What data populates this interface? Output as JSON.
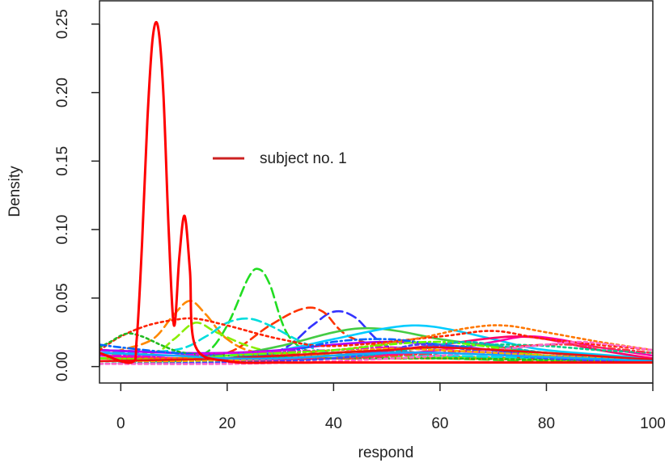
{
  "chart_data": {
    "type": "line",
    "title": "",
    "xlabel": "respond",
    "ylabel": "Density",
    "xlim": [
      -4,
      100
    ],
    "ylim": [
      -0.012,
      0.267
    ],
    "x_ticks": [
      0,
      20,
      40,
      60,
      80,
      100
    ],
    "y_ticks": [
      0.0,
      0.05,
      0.1,
      0.15,
      0.2,
      0.25
    ],
    "x_tick_labels": [
      "0",
      "20",
      "40",
      "60",
      "80",
      "100"
    ],
    "y_tick_labels": [
      "0.00",
      "0.05",
      "0.10",
      "0.15",
      "0.20",
      "0.25"
    ],
    "grid": false,
    "legend": {
      "placement": "upper-middle",
      "entries": [
        {
          "label": "subject no. 1",
          "color": "#cc2222"
        }
      ]
    },
    "highlight_series": {
      "label": "subject no. 1",
      "color": "#ff0000",
      "x": [
        -4,
        2,
        3,
        4,
        5,
        6,
        7,
        8,
        9,
        10,
        11,
        12,
        13,
        14,
        20,
        30,
        40,
        50,
        60,
        70,
        80,
        90,
        100
      ],
      "y": [
        0.01,
        0.003,
        0.02,
        0.09,
        0.18,
        0.24,
        0.248,
        0.2,
        0.1,
        0.03,
        0.08,
        0.11,
        0.07,
        0.015,
        0.004,
        0.003,
        0.003,
        0.003,
        0.003,
        0.003,
        0.003,
        0.003,
        0.003
      ]
    },
    "background_series": [
      {
        "color": "#22dd22",
        "dash": "12 6",
        "x": [
          -4,
          10,
          16,
          20,
          24,
          26,
          28,
          32,
          40,
          60,
          80,
          100
        ],
        "y": [
          0.006,
          0.006,
          0.01,
          0.03,
          0.065,
          0.071,
          0.06,
          0.02,
          0.008,
          0.006,
          0.004,
          0.004
        ]
      },
      {
        "color": "#ff8800",
        "dash": "12 6",
        "x": [
          -4,
          0,
          6,
          10,
          13,
          16,
          20,
          26,
          40,
          60,
          80,
          100
        ],
        "y": [
          0.008,
          0.012,
          0.02,
          0.038,
          0.048,
          0.038,
          0.02,
          0.01,
          0.006,
          0.006,
          0.005,
          0.005
        ]
      },
      {
        "color": "#3333ff",
        "dash": "12 6",
        "x": [
          -4,
          10,
          20,
          30,
          36,
          40,
          44,
          50,
          60,
          80,
          100
        ],
        "y": [
          0.012,
          0.01,
          0.006,
          0.012,
          0.03,
          0.04,
          0.036,
          0.015,
          0.008,
          0.006,
          0.005
        ]
      },
      {
        "color": "#ff3300",
        "dash": "10 6",
        "x": [
          -4,
          10,
          20,
          28,
          34,
          38,
          44,
          60,
          80,
          100
        ],
        "y": [
          0.01,
          0.008,
          0.01,
          0.03,
          0.042,
          0.04,
          0.02,
          0.008,
          0.006,
          0.005
        ]
      },
      {
        "color": "#88ee00",
        "dash": "10 6",
        "x": [
          -4,
          6,
          10,
          14,
          18,
          24,
          30,
          40,
          60,
          80,
          100
        ],
        "y": [
          0.008,
          0.01,
          0.02,
          0.032,
          0.025,
          0.015,
          0.01,
          0.008,
          0.007,
          0.005,
          0.004
        ]
      },
      {
        "color": "#00dddd",
        "dash": "12 6",
        "x": [
          -4,
          10,
          16,
          20,
          24,
          28,
          34,
          40,
          60,
          80,
          100
        ],
        "y": [
          0.01,
          0.012,
          0.022,
          0.032,
          0.035,
          0.03,
          0.018,
          0.01,
          0.008,
          0.006,
          0.005
        ]
      },
      {
        "color": "#44cc44",
        "dash": "",
        "x": [
          -4,
          10,
          20,
          30,
          40,
          46,
          52,
          60,
          70,
          80,
          100
        ],
        "y": [
          0.006,
          0.006,
          0.008,
          0.015,
          0.025,
          0.028,
          0.026,
          0.02,
          0.015,
          0.01,
          0.006
        ]
      },
      {
        "color": "#00ccff",
        "dash": "",
        "x": [
          -4,
          10,
          20,
          30,
          40,
          50,
          56,
          62,
          70,
          80,
          100
        ],
        "y": [
          0.004,
          0.005,
          0.008,
          0.012,
          0.02,
          0.028,
          0.03,
          0.027,
          0.02,
          0.012,
          0.006
        ]
      },
      {
        "color": "#ff00aa",
        "dash": "",
        "x": [
          -4,
          10,
          20,
          40,
          60,
          70,
          76,
          82,
          90,
          100
        ],
        "y": [
          0.008,
          0.006,
          0.005,
          0.006,
          0.012,
          0.018,
          0.022,
          0.02,
          0.014,
          0.008
        ]
      },
      {
        "color": "#ff0066",
        "dash": "",
        "x": [
          -4,
          10,
          20,
          40,
          60,
          68,
          74,
          80,
          90,
          100
        ],
        "y": [
          0.012,
          0.01,
          0.008,
          0.008,
          0.016,
          0.02,
          0.022,
          0.02,
          0.012,
          0.006
        ]
      },
      {
        "color": "#aa00ff",
        "dash": "",
        "x": [
          -4,
          10,
          20,
          30,
          40,
          50,
          60,
          70,
          80,
          100
        ],
        "y": [
          0.012,
          0.01,
          0.01,
          0.012,
          0.016,
          0.018,
          0.016,
          0.012,
          0.008,
          0.004
        ]
      },
      {
        "color": "#ff2200",
        "dash": "3 4",
        "x": [
          -4,
          0,
          5,
          10,
          14,
          20,
          30,
          40,
          60,
          70,
          80,
          100
        ],
        "y": [
          0.012,
          0.022,
          0.03,
          0.034,
          0.035,
          0.03,
          0.02,
          0.015,
          0.022,
          0.026,
          0.02,
          0.012
        ]
      },
      {
        "color": "#ff7700",
        "dash": "3 4",
        "x": [
          -4,
          10,
          20,
          40,
          55,
          65,
          72,
          80,
          90,
          100
        ],
        "y": [
          0.006,
          0.006,
          0.008,
          0.012,
          0.02,
          0.028,
          0.03,
          0.025,
          0.018,
          0.012
        ]
      },
      {
        "color": "#22bb22",
        "dash": "3 4",
        "x": [
          -4,
          -2,
          1,
          4,
          8,
          12,
          20,
          40,
          60,
          80,
          100
        ],
        "y": [
          0.014,
          0.018,
          0.024,
          0.022,
          0.015,
          0.01,
          0.008,
          0.006,
          0.006,
          0.005,
          0.004
        ]
      },
      {
        "color": "#00cc88",
        "dash": "3 4",
        "x": [
          -4,
          10,
          20,
          40,
          60,
          70,
          80,
          90,
          100
        ],
        "y": [
          0.004,
          0.004,
          0.006,
          0.01,
          0.014,
          0.016,
          0.015,
          0.012,
          0.01
        ]
      },
      {
        "color": "#0066ff",
        "dash": "8 4 2 4",
        "x": [
          -4,
          0,
          10,
          20,
          30,
          40,
          50,
          60,
          80,
          100
        ],
        "y": [
          0.016,
          0.014,
          0.01,
          0.008,
          0.01,
          0.018,
          0.02,
          0.016,
          0.008,
          0.004
        ]
      },
      {
        "color": "#dd00dd",
        "dash": "8 4 2 4",
        "x": [
          -4,
          10,
          20,
          40,
          50,
          60,
          70,
          80,
          100
        ],
        "y": [
          0.008,
          0.008,
          0.01,
          0.012,
          0.014,
          0.012,
          0.01,
          0.008,
          0.005
        ]
      },
      {
        "color": "#ff3344",
        "dash": "8 4 2 4",
        "x": [
          -4,
          10,
          20,
          40,
          60,
          80,
          90,
          100
        ],
        "y": [
          0.004,
          0.005,
          0.006,
          0.006,
          0.01,
          0.016,
          0.014,
          0.01
        ]
      },
      {
        "color": "#66ff00",
        "dash": "8 4 2 4",
        "x": [
          -4,
          10,
          20,
          40,
          50,
          60,
          70,
          80,
          100
        ],
        "y": [
          0.006,
          0.005,
          0.008,
          0.012,
          0.016,
          0.018,
          0.014,
          0.008,
          0.004
        ]
      },
      {
        "color": "#00bbbb",
        "dash": "4 4",
        "x": [
          -4,
          10,
          30,
          40,
          50,
          60,
          65,
          70,
          80,
          100
        ],
        "y": [
          0.002,
          0.003,
          0.004,
          0.006,
          0.01,
          0.016,
          0.018,
          0.016,
          0.01,
          0.004
        ]
      },
      {
        "color": "#4444ff",
        "dash": "4 4",
        "x": [
          -4,
          20,
          40,
          50,
          56,
          62,
          70,
          80,
          100
        ],
        "y": [
          0.002,
          0.003,
          0.006,
          0.012,
          0.016,
          0.014,
          0.01,
          0.006,
          0.003
        ]
      },
      {
        "color": "#ff66cc",
        "dash": "4 4",
        "x": [
          -4,
          20,
          40,
          60,
          70,
          80,
          86,
          92,
          100
        ],
        "y": [
          0.002,
          0.002,
          0.004,
          0.008,
          0.012,
          0.016,
          0.018,
          0.016,
          0.012
        ]
      },
      {
        "color": "#ffaa00",
        "dash": "4 4",
        "x": [
          -4,
          10,
          30,
          40,
          50,
          60,
          80,
          100
        ],
        "y": [
          0.004,
          0.004,
          0.006,
          0.01,
          0.013,
          0.012,
          0.008,
          0.004
        ]
      },
      {
        "color": "#ee1111",
        "dash": "",
        "x": [
          -4,
          10,
          20,
          30,
          40,
          50,
          60,
          80,
          100
        ],
        "y": [
          0.004,
          0.005,
          0.006,
          0.008,
          0.01,
          0.012,
          0.014,
          0.01,
          0.005
        ]
      },
      {
        "color": "#11aaff",
        "dash": "",
        "x": [
          -4,
          10,
          20,
          30,
          40,
          50,
          60,
          80,
          100
        ],
        "y": [
          0.01,
          0.008,
          0.006,
          0.006,
          0.008,
          0.01,
          0.01,
          0.007,
          0.004
        ]
      }
    ]
  }
}
